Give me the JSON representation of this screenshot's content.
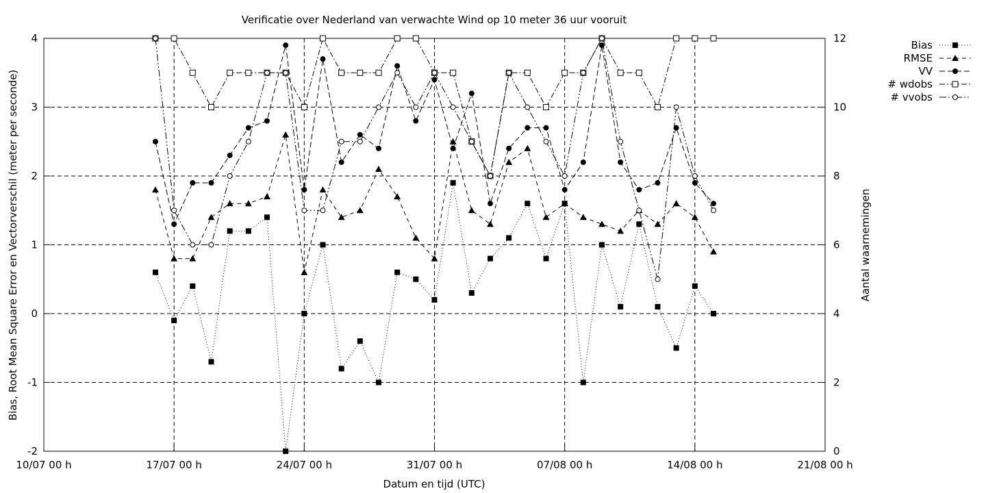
{
  "chart_data": {
    "type": "line",
    "title": "Verificatie over Nederland van verwachte Wind op 10 meter 36 uur vooruit",
    "xlabel": "Datum en tijd (UTC)",
    "ylabel": "Bias, Root Mean Square Error en Vectorverschil (meter per seconde)",
    "y2label": "Aantal waarnemingen",
    "x_unit": "days from 10/07 00 h",
    "xlim": [
      0,
      42
    ],
    "ylim": [
      -2,
      4
    ],
    "y2lim": [
      0,
      12
    ],
    "x_ticks": [
      {
        "x": 0,
        "label": "10/07 00 h"
      },
      {
        "x": 7,
        "label": "17/07 00 h"
      },
      {
        "x": 14,
        "label": "24/07 00 h"
      },
      {
        "x": 21,
        "label": "31/07 00 h"
      },
      {
        "x": 28,
        "label": "07/08 00 h"
      },
      {
        "x": 35,
        "label": "14/08 00 h"
      },
      {
        "x": 42,
        "label": "21/08 00 h"
      }
    ],
    "y_ticks": [
      "-2",
      "-1",
      "0",
      "1",
      "2",
      "3",
      "4"
    ],
    "y2_ticks": [
      "0",
      "2",
      "4",
      "6",
      "8",
      "10",
      "12"
    ],
    "grid": true,
    "legend_position": "top-right outside",
    "x": [
      6,
      7,
      8,
      9,
      10,
      11,
      12,
      13,
      14,
      15,
      16,
      17,
      18,
      19,
      20,
      21,
      22,
      23,
      24,
      25,
      26,
      27,
      28,
      29,
      30,
      31,
      32,
      33,
      34,
      35,
      36
    ],
    "series": [
      {
        "name": "Bias",
        "axis": "y",
        "marker": "filled-square",
        "dash": "1,3",
        "values": [
          0.6,
          -0.1,
          0.4,
          -0.7,
          1.2,
          1.2,
          1.4,
          -2.0,
          0.0,
          1.0,
          -0.8,
          -0.4,
          -1.0,
          0.6,
          0.5,
          0.2,
          1.9,
          0.3,
          0.8,
          1.1,
          1.6,
          0.8,
          1.6,
          -1.0,
          1.0,
          0.1,
          1.3,
          0.1,
          -0.5,
          0.4,
          0.0
        ]
      },
      {
        "name": "RMSE",
        "axis": "y",
        "marker": "filled-triangle",
        "dash": "6,5",
        "values": [
          1.8,
          0.8,
          0.8,
          1.4,
          1.6,
          1.6,
          1.7,
          2.6,
          0.6,
          1.8,
          1.4,
          1.5,
          2.1,
          1.7,
          1.1,
          0.8,
          2.5,
          1.5,
          1.3,
          2.2,
          2.4,
          1.4,
          1.6,
          1.4,
          1.3,
          1.2,
          1.5,
          1.3,
          1.6,
          1.4,
          0.9
        ]
      },
      {
        "name": "VV",
        "axis": "y",
        "marker": "filled-circle",
        "dash": "8,4",
        "values": [
          2.5,
          1.3,
          1.9,
          1.9,
          2.3,
          2.7,
          2.8,
          3.9,
          1.8,
          3.7,
          2.2,
          2.6,
          2.4,
          3.6,
          2.8,
          3.4,
          2.4,
          3.2,
          1.6,
          2.4,
          2.7,
          2.7,
          1.8,
          2.2,
          3.9,
          2.2,
          1.8,
          1.9,
          2.7,
          1.9,
          1.6
        ]
      },
      {
        "name": "# wdobs",
        "axis": "y2",
        "marker": "open-square",
        "dash": "8,3,2,3",
        "values": [
          12,
          12,
          11,
          10,
          11,
          11,
          11,
          11,
          10,
          12,
          11,
          11,
          11,
          12,
          12,
          11,
          11,
          9,
          8,
          11,
          11,
          10,
          11,
          11,
          12,
          11,
          11,
          10,
          12,
          12,
          12
        ]
      },
      {
        "name": "# vvobs",
        "axis": "y2",
        "marker": "open-circle",
        "dash": "10,3,2,3,2,3",
        "values": [
          12,
          7,
          6,
          6,
          8,
          9,
          11,
          11,
          7,
          7,
          9,
          9,
          10,
          11,
          10,
          11,
          10,
          9,
          8,
          11,
          10,
          9,
          8,
          11,
          12,
          9,
          7,
          5,
          10,
          8,
          7
        ]
      }
    ]
  }
}
